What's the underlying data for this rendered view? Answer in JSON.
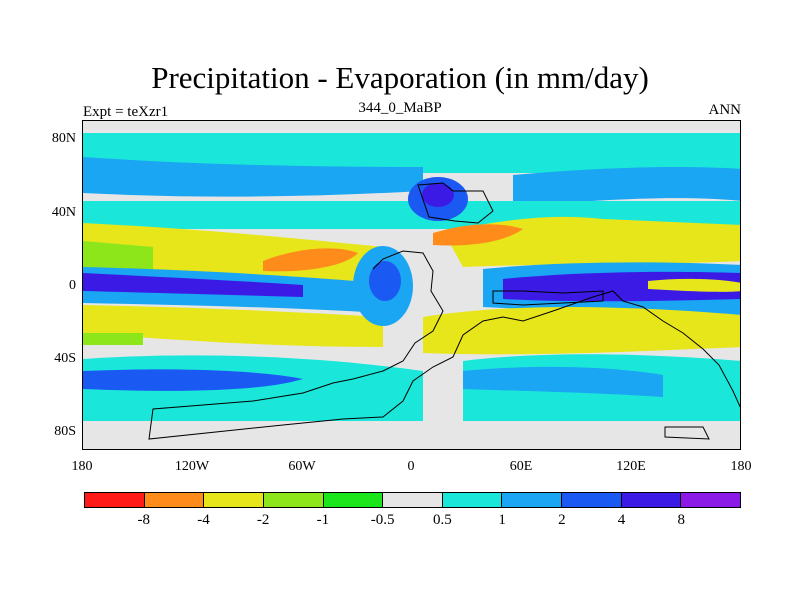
{
  "title": "Precipitation - Evaporation (in mm/day)",
  "left_subtitle": "Expt = teXzr1",
  "center_subtitle": "344_0_MaBP",
  "right_subtitle": "ANN",
  "y_ticks": [
    "80N",
    "40N",
    "0",
    "40S",
    "80S"
  ],
  "x_ticks": [
    "180",
    "120W",
    "60W",
    "0",
    "60E",
    "120E",
    "180"
  ],
  "colorbar": {
    "colors": [
      "#ff1a1a",
      "#ff8c1a",
      "#e6e61a",
      "#8ce61a",
      "#1ae61a",
      "#e6e6e6",
      "#1ae6d9",
      "#1aa6f2",
      "#1a59f2",
      "#3b1ae6",
      "#8c1ae6"
    ],
    "labels": [
      "-8",
      "-4",
      "-2",
      "-1",
      "-0.5",
      "0.5",
      "1",
      "2",
      "4",
      "8"
    ]
  },
  "map_colors": {
    "land_gray": "#e6e6e6",
    "cyan": "#1ae6d9",
    "light_blue": "#1aa6f2",
    "blue": "#1a59f2",
    "deep_blue": "#3b1ae6",
    "green": "#1ae61a",
    "light_green": "#8ce61a",
    "yellow": "#e6e61a",
    "orange": "#ff8c1a"
  }
}
